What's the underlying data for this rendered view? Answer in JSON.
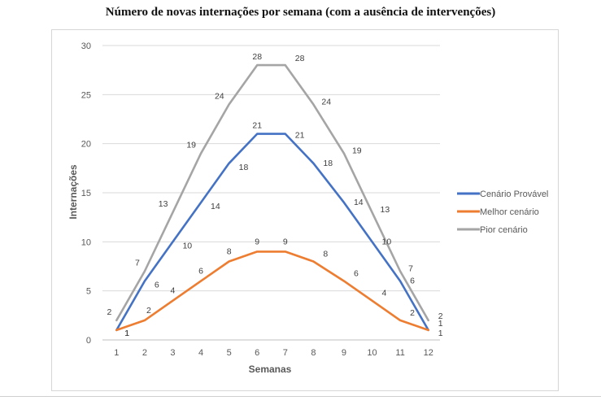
{
  "chart_data": {
    "type": "line",
    "title": "Número de novas internações por semana (com a ausência de intervenções)",
    "xlabel": "Semanas",
    "ylabel": "Internações",
    "categories": [
      "1",
      "2",
      "3",
      "4",
      "5",
      "6",
      "7",
      "8",
      "9",
      "10",
      "11",
      "12"
    ],
    "yticks": [
      "0",
      "5",
      "10",
      "15",
      "20",
      "25",
      "30"
    ],
    "ylim": [
      0,
      30
    ],
    "grid": true,
    "legend_position": "right",
    "series": [
      {
        "name": "Cenário Provável",
        "color": "#4472C4",
        "values": [
          1,
          6,
          10,
          14,
          18,
          21,
          21,
          18,
          14,
          10,
          6,
          1
        ]
      },
      {
        "name": "Melhor cenário",
        "color": "#ED7D31",
        "values": [
          1,
          2,
          4,
          6,
          8,
          9,
          9,
          8,
          6,
          4,
          2,
          1
        ]
      },
      {
        "name": "Pior cenário",
        "color": "#A5A5A5",
        "values": [
          2,
          7,
          13,
          19,
          24,
          28,
          28,
          24,
          19,
          13,
          7,
          2
        ]
      }
    ]
  }
}
